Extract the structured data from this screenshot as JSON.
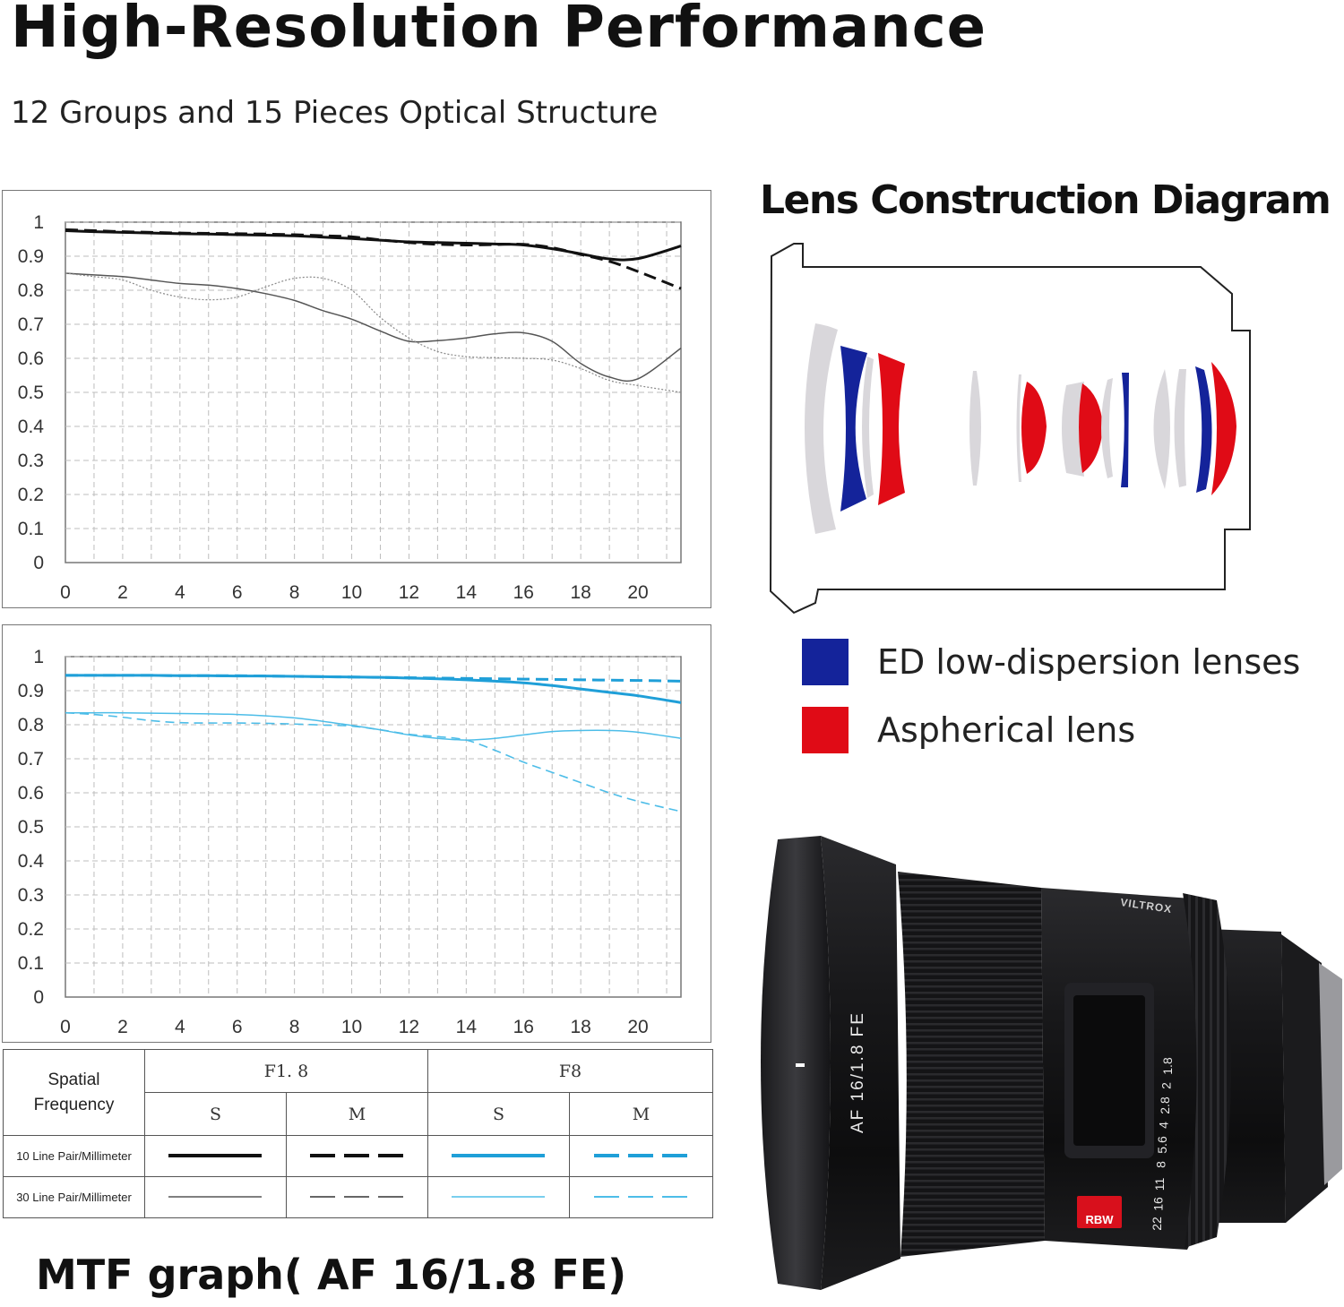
{
  "header": {
    "title": "High-Resolution Performance",
    "subtitle": "12 Groups and 15 Pieces Optical Structure"
  },
  "chart_data": [
    {
      "type": "line",
      "x": [
        0,
        1,
        2,
        3,
        4,
        5,
        6,
        7,
        8,
        9,
        10,
        11,
        12,
        13,
        14,
        15,
        16,
        17,
        18,
        19,
        20,
        21.5
      ],
      "xticks": [
        "0",
        "2",
        "4",
        "6",
        "8",
        "10",
        "12",
        "14",
        "16",
        "18",
        "20"
      ],
      "yticks": [
        "0",
        "0.1",
        "0.2",
        "0.3",
        "0.4",
        "0.5",
        "0.6",
        "0.7",
        "0.8",
        "0.9",
        "1"
      ],
      "xlim": [
        0,
        21.5
      ],
      "ylim": [
        0,
        1
      ],
      "grid": true,
      "colors": {
        "10lp": "#111111",
        "30lp": "#555555"
      },
      "series": [
        {
          "name": "F1.8 S 10 Line Pair/Millimeter",
          "style": "solid-thick",
          "color": "#111111",
          "values": [
            0.975,
            0.972,
            0.97,
            0.968,
            0.966,
            0.965,
            0.963,
            0.962,
            0.96,
            0.956,
            0.952,
            0.947,
            0.942,
            0.94,
            0.938,
            0.936,
            0.933,
            0.922,
            0.907,
            0.892,
            0.893,
            0.93
          ]
        },
        {
          "name": "F1.8 M 10 Line Pair/Millimeter",
          "style": "dashed-thick",
          "color": "#111111",
          "values": [
            0.978,
            0.975,
            0.972,
            0.97,
            0.968,
            0.967,
            0.966,
            0.965,
            0.963,
            0.96,
            0.957,
            0.948,
            0.94,
            0.935,
            0.933,
            0.934,
            0.935,
            0.925,
            0.905,
            0.885,
            0.855,
            0.805
          ]
        },
        {
          "name": "F1.8 S 30 Line Pair/Millimeter",
          "style": "solid-thin",
          "color": "#555555",
          "values": [
            0.85,
            0.845,
            0.84,
            0.83,
            0.82,
            0.815,
            0.805,
            0.79,
            0.77,
            0.74,
            0.715,
            0.68,
            0.65,
            0.652,
            0.66,
            0.672,
            0.675,
            0.65,
            0.585,
            0.545,
            0.54,
            0.63
          ]
        },
        {
          "name": "F1.8 M 30 Line Pair/Millimeter",
          "style": "dotted-thin",
          "color": "#8a8a8a",
          "values": [
            0.85,
            0.84,
            0.83,
            0.8,
            0.78,
            0.772,
            0.78,
            0.81,
            0.835,
            0.835,
            0.8,
            0.72,
            0.66,
            0.62,
            0.605,
            0.602,
            0.6,
            0.595,
            0.57,
            0.535,
            0.52,
            0.5
          ]
        }
      ]
    },
    {
      "type": "line",
      "x": [
        0,
        1,
        2,
        3,
        4,
        5,
        6,
        7,
        8,
        9,
        10,
        11,
        12,
        13,
        14,
        15,
        16,
        17,
        18,
        19,
        20,
        21.5
      ],
      "xticks": [
        "0",
        "2",
        "4",
        "6",
        "8",
        "10",
        "12",
        "14",
        "16",
        "18",
        "20"
      ],
      "yticks": [
        "0",
        "0.1",
        "0.2",
        "0.3",
        "0.4",
        "0.5",
        "0.6",
        "0.7",
        "0.8",
        "0.9",
        "1"
      ],
      "xlim": [
        0,
        21.5
      ],
      "ylim": [
        0,
        1
      ],
      "grid": true,
      "colors": {
        "10lp": "#1f9fd8",
        "30lp": "#4dbde8"
      },
      "series": [
        {
          "name": "F8 S 10 Line Pair/Millimeter",
          "style": "solid-thick",
          "color": "#1f9fd8",
          "values": [
            0.945,
            0.945,
            0.945,
            0.945,
            0.944,
            0.944,
            0.943,
            0.943,
            0.942,
            0.941,
            0.94,
            0.939,
            0.937,
            0.935,
            0.932,
            0.928,
            0.923,
            0.915,
            0.905,
            0.895,
            0.885,
            0.865
          ]
        },
        {
          "name": "F8 M 10 Line Pair/Millimeter",
          "style": "dashed-thick",
          "color": "#1f9fd8",
          "values": [
            0.945,
            0.945,
            0.945,
            0.945,
            0.944,
            0.944,
            0.944,
            0.943,
            0.942,
            0.941,
            0.94,
            0.939,
            0.938,
            0.937,
            0.936,
            0.935,
            0.934,
            0.933,
            0.932,
            0.931,
            0.93,
            0.928
          ]
        },
        {
          "name": "F8 S 30 Line Pair/Millimeter",
          "style": "solid-thin",
          "color": "#4dbde8",
          "values": [
            0.835,
            0.835,
            0.835,
            0.834,
            0.833,
            0.832,
            0.83,
            0.826,
            0.82,
            0.81,
            0.798,
            0.785,
            0.77,
            0.76,
            0.755,
            0.76,
            0.77,
            0.78,
            0.783,
            0.783,
            0.778,
            0.76
          ]
        },
        {
          "name": "F8 M 30 Line Pair/Millimeter",
          "style": "dashed-thin",
          "color": "#4dbde8",
          "values": [
            0.835,
            0.83,
            0.822,
            0.812,
            0.806,
            0.805,
            0.805,
            0.804,
            0.802,
            0.799,
            0.796,
            0.785,
            0.772,
            0.765,
            0.755,
            0.725,
            0.69,
            0.66,
            0.63,
            0.6,
            0.575,
            0.545
          ]
        }
      ]
    }
  ],
  "mtf_legend": {
    "corner_label_line1": "Spatial",
    "corner_label_line2": "Frequency",
    "aperture_1": "F1. 8",
    "aperture_2": "F8",
    "sagittal": "S",
    "meridional": "M",
    "row_10lp": "10 Line Pair/Millimeter",
    "row_30lp": "30 Line Pair/Millimeter"
  },
  "mtf_caption": "MTF graph( AF 16/1.8 FE)",
  "lens_diagram": {
    "title": "Lens Construction Diagram",
    "ed_color": "#14239a",
    "aspherical_color": "#e00b16",
    "element_color": "#d9d7db",
    "legend": {
      "ed_label": "ED low-dispersion lenses",
      "aspherical_label": "Aspherical lens"
    }
  },
  "product": {
    "brand": "VILTROX",
    "model": "AF 16/1.8 FE",
    "badge": "RBW",
    "distance_scale": [
      "1.8",
      "2",
      "2.8",
      "4",
      "5.6",
      "8",
      "11",
      "16",
      "22"
    ]
  }
}
